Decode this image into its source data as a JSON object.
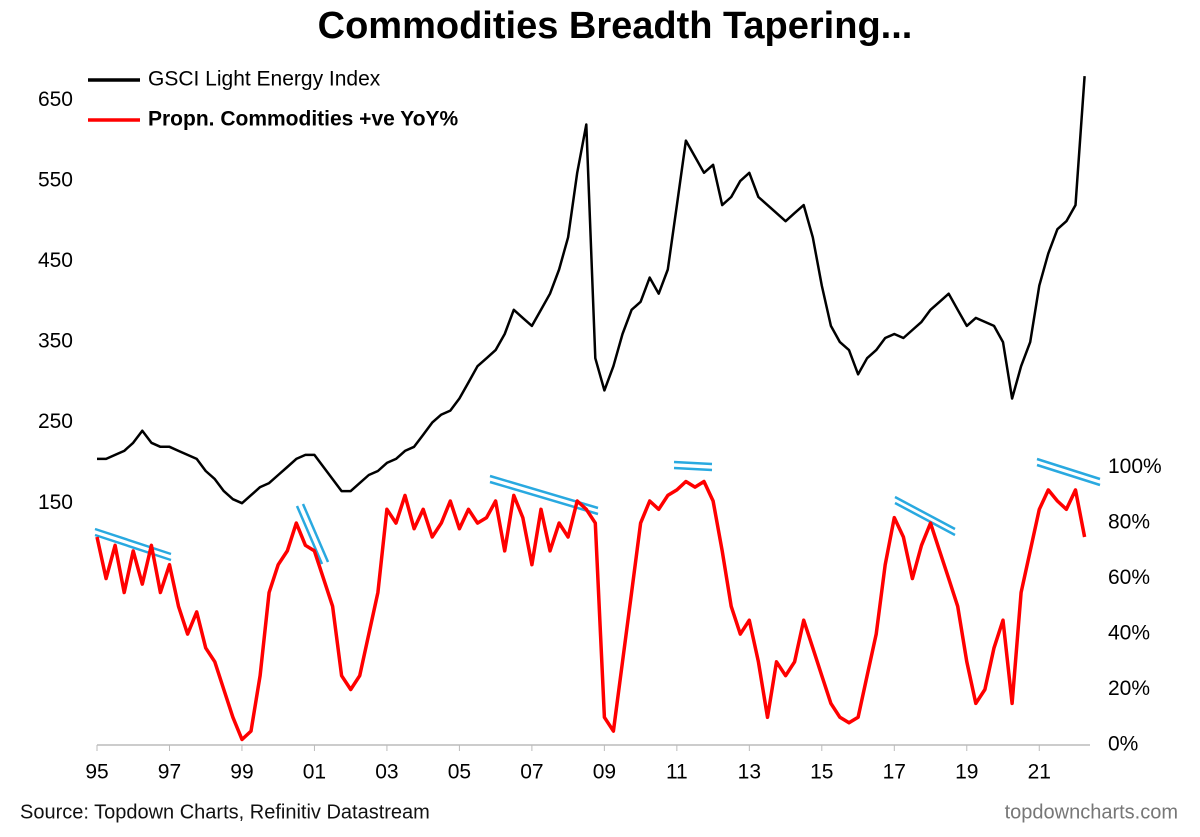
{
  "chart_data": {
    "type": "line",
    "title": "Commodities Breadth Tapering...",
    "source": "Source: Topdown Charts, Refinitiv Datastream",
    "watermark": "topdowncharts.com",
    "x": [
      1995,
      1995.25,
      1995.5,
      1995.75,
      1996,
      1996.25,
      1996.5,
      1996.75,
      1997,
      1997.25,
      1997.5,
      1997.75,
      1998,
      1998.25,
      1998.5,
      1998.75,
      1999,
      1999.25,
      1999.5,
      1999.75,
      2000,
      2000.25,
      2000.5,
      2000.75,
      2001,
      2001.25,
      2001.5,
      2001.75,
      2002,
      2002.25,
      2002.5,
      2002.75,
      2003,
      2003.25,
      2003.5,
      2003.75,
      2004,
      2004.25,
      2004.5,
      2004.75,
      2005,
      2005.25,
      2005.5,
      2005.75,
      2006,
      2006.25,
      2006.5,
      2006.75,
      2007,
      2007.25,
      2007.5,
      2007.75,
      2008,
      2008.25,
      2008.5,
      2008.75,
      2009,
      2009.25,
      2009.5,
      2009.75,
      2010,
      2010.25,
      2010.5,
      2010.75,
      2011,
      2011.25,
      2011.5,
      2011.75,
      2012,
      2012.25,
      2012.5,
      2012.75,
      2013,
      2013.25,
      2013.5,
      2013.75,
      2014,
      2014.25,
      2014.5,
      2014.75,
      2015,
      2015.25,
      2015.5,
      2015.75,
      2016,
      2016.25,
      2016.5,
      2016.75,
      2017,
      2017.25,
      2017.5,
      2017.75,
      2018,
      2018.25,
      2018.5,
      2018.75,
      2019,
      2019.25,
      2019.5,
      2019.75,
      2020,
      2020.25,
      2020.5,
      2020.75,
      2021,
      2021.25,
      2021.5,
      2021.75,
      2022,
      2022.25
    ],
    "series": [
      {
        "name": "GSCI Light Energy Index",
        "color": "#000000",
        "axis": "y",
        "values": [
          205,
          205,
          210,
          215,
          225,
          240,
          225,
          220,
          220,
          215,
          210,
          205,
          190,
          180,
          165,
          155,
          150,
          160,
          170,
          175,
          185,
          195,
          205,
          210,
          210,
          195,
          180,
          165,
          165,
          175,
          185,
          190,
          200,
          205,
          215,
          220,
          235,
          250,
          260,
          265,
          280,
          300,
          320,
          330,
          340,
          360,
          390,
          380,
          370,
          390,
          410,
          440,
          480,
          560,
          620,
          330,
          290,
          320,
          360,
          390,
          400,
          430,
          410,
          440,
          520,
          600,
          580,
          560,
          570,
          520,
          530,
          550,
          560,
          530,
          520,
          510,
          500,
          510,
          520,
          480,
          420,
          370,
          350,
          340,
          310,
          330,
          340,
          355,
          360,
          355,
          365,
          375,
          390,
          400,
          410,
          390,
          370,
          380,
          375,
          370,
          350,
          280,
          320,
          350,
          420,
          460,
          490,
          500,
          520,
          680
        ]
      },
      {
        "name": "Propn. Commodities +ve YoY%",
        "color": "#ff0000",
        "axis": "y2",
        "values": [
          75,
          60,
          72,
          55,
          70,
          58,
          72,
          55,
          65,
          50,
          40,
          48,
          35,
          30,
          20,
          10,
          2,
          5,
          25,
          55,
          65,
          70,
          80,
          72,
          70,
          60,
          50,
          25,
          20,
          25,
          40,
          55,
          85,
          80,
          90,
          78,
          85,
          75,
          80,
          88,
          78,
          85,
          80,
          82,
          88,
          70,
          90,
          82,
          65,
          85,
          70,
          80,
          75,
          88,
          85,
          80,
          10,
          5,
          30,
          55,
          80,
          88,
          85,
          90,
          92,
          95,
          93,
          95,
          88,
          70,
          50,
          40,
          45,
          30,
          10,
          30,
          25,
          30,
          45,
          35,
          25,
          15,
          10,
          8,
          10,
          25,
          40,
          65,
          82,
          75,
          60,
          72,
          80,
          70,
          60,
          50,
          30,
          15,
          20,
          35,
          45,
          15,
          55,
          70,
          85,
          92,
          88,
          85,
          92,
          75
        ]
      }
    ],
    "xlim": [
      1995,
      2022.4
    ],
    "xticks": [
      {
        "value": 1995,
        "label": "95"
      },
      {
        "value": 1997,
        "label": "97"
      },
      {
        "value": 1999,
        "label": "99"
      },
      {
        "value": 2001,
        "label": "01"
      },
      {
        "value": 2003,
        "label": "03"
      },
      {
        "value": 2005,
        "label": "05"
      },
      {
        "value": 2007,
        "label": "07"
      },
      {
        "value": 2009,
        "label": "09"
      },
      {
        "value": 2011,
        "label": "11"
      },
      {
        "value": 2013,
        "label": "13"
      },
      {
        "value": 2015,
        "label": "15"
      },
      {
        "value": 2017,
        "label": "17"
      },
      {
        "value": 2019,
        "label": "19"
      },
      {
        "value": 2021,
        "label": "21"
      }
    ],
    "ylim": [
      -150,
      700
    ],
    "yticks": [
      150,
      250,
      350,
      450,
      550,
      650
    ],
    "y2lim": [
      0,
      247
    ],
    "y2ticks": [
      {
        "value": 0,
        "label": "0%"
      },
      {
        "value": 20,
        "label": "20%"
      },
      {
        "value": 40,
        "label": "40%"
      },
      {
        "value": 60,
        "label": "60%"
      },
      {
        "value": 80,
        "label": "80%"
      },
      {
        "value": 100,
        "label": "100%"
      }
    ],
    "legend": "top-left"
  }
}
